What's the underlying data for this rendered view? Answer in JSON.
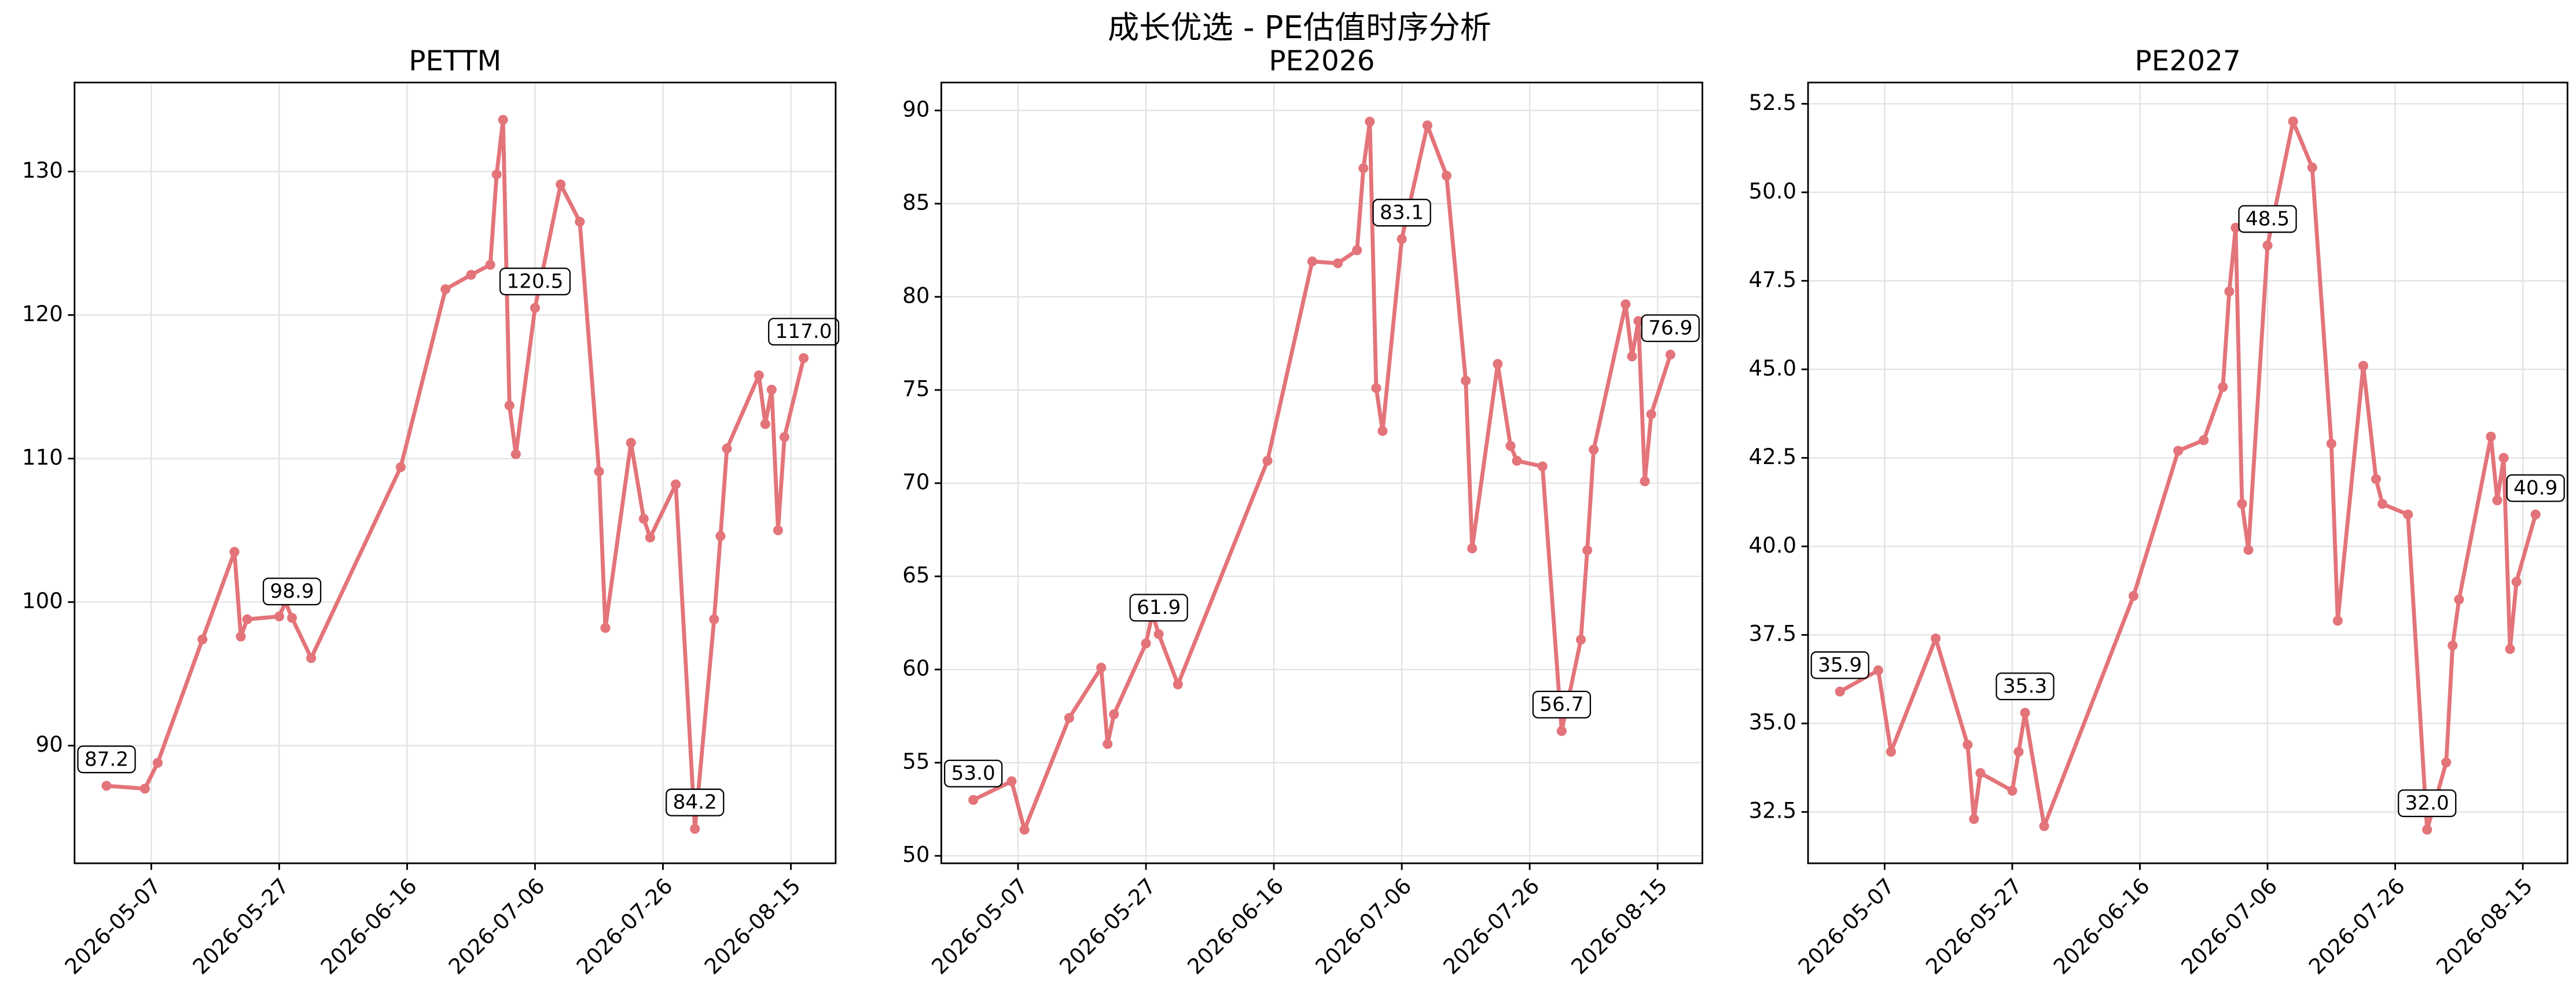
{
  "title": "成长优选 - PE估值时序分析",
  "chart_data": [
    {
      "type": "line",
      "title": "PETTM",
      "x": [
        "2026-04-30",
        "2026-05-06",
        "2026-05-08",
        "2026-05-15",
        "2026-05-20",
        "2026-05-21",
        "2026-05-22",
        "2026-05-27",
        "2026-05-28",
        "2026-05-29",
        "2026-06-01",
        "2026-06-15",
        "2026-06-22",
        "2026-06-26",
        "2026-06-29",
        "2026-06-30",
        "2026-07-01",
        "2026-07-02",
        "2026-07-03",
        "2026-07-06",
        "2026-07-10",
        "2026-07-13",
        "2026-07-16",
        "2026-07-17",
        "2026-07-21",
        "2026-07-23",
        "2026-07-24",
        "2026-07-28",
        "2026-07-31",
        "2026-08-03",
        "2026-08-04",
        "2026-08-05",
        "2026-08-10",
        "2026-08-11",
        "2026-08-12",
        "2026-08-13",
        "2026-08-14",
        "2026-08-17"
      ],
      "series": [
        {
          "color": "#e3747a",
          "values": [
            87.2,
            87.0,
            88.8,
            97.4,
            103.5,
            97.6,
            98.8,
            99.0,
            100.0,
            98.9,
            96.1,
            109.4,
            121.8,
            122.8,
            123.5,
            129.8,
            133.6,
            113.7,
            110.3,
            120.5,
            129.1,
            126.5,
            109.1,
            98.2,
            111.1,
            105.8,
            104.5,
            108.2,
            84.2,
            98.8,
            104.6,
            110.7,
            115.8,
            112.4,
            114.8,
            105.0,
            111.5,
            117.0
          ],
          "value_labels": [
            "87.2",
            null,
            null,
            null,
            null,
            null,
            null,
            null,
            null,
            "98.9",
            null,
            null,
            null,
            null,
            null,
            null,
            null,
            null,
            null,
            "120.5",
            null,
            null,
            null,
            null,
            null,
            null,
            null,
            null,
            "84.2",
            null,
            null,
            null,
            null,
            null,
            null,
            null,
            null,
            "117.0"
          ]
        }
      ],
      "xlim": [
        "2026-04-25",
        "2026-08-22"
      ],
      "xticks": [
        "2026-05-07",
        "2026-05-27",
        "2026-06-16",
        "2026-07-06",
        "2026-07-26",
        "2026-08-15"
      ],
      "ylim": [
        81.8,
        136.2
      ],
      "yticks": [
        90,
        100,
        110,
        120,
        130
      ],
      "grid": true
    },
    {
      "type": "line",
      "title": "PE2026",
      "x": [
        "2026-04-30",
        "2026-05-06",
        "2026-05-08",
        "2026-05-15",
        "2026-05-20",
        "2026-05-21",
        "2026-05-22",
        "2026-05-27",
        "2026-05-28",
        "2026-05-29",
        "2026-06-01",
        "2026-06-15",
        "2026-06-22",
        "2026-06-26",
        "2026-06-29",
        "2026-06-30",
        "2026-07-01",
        "2026-07-02",
        "2026-07-03",
        "2026-07-06",
        "2026-07-10",
        "2026-07-13",
        "2026-07-16",
        "2026-07-17",
        "2026-07-21",
        "2026-07-23",
        "2026-07-24",
        "2026-07-28",
        "2026-07-31",
        "2026-08-03",
        "2026-08-04",
        "2026-08-05",
        "2026-08-10",
        "2026-08-11",
        "2026-08-12",
        "2026-08-13",
        "2026-08-14",
        "2026-08-17"
      ],
      "series": [
        {
          "color": "#e3747a",
          "values": [
            53.0,
            54.0,
            51.4,
            57.4,
            60.1,
            56.0,
            57.6,
            61.4,
            63.0,
            61.9,
            59.2,
            71.2,
            81.9,
            81.8,
            82.5,
            86.9,
            89.4,
            75.1,
            72.8,
            83.1,
            89.2,
            86.5,
            75.5,
            66.5,
            76.4,
            72.0,
            71.2,
            70.9,
            56.7,
            61.6,
            66.4,
            71.8,
            79.6,
            76.8,
            78.7,
            70.1,
            73.7,
            76.9
          ],
          "value_labels": [
            "53.0",
            null,
            null,
            null,
            null,
            null,
            null,
            null,
            null,
            "61.9",
            null,
            null,
            null,
            null,
            null,
            null,
            null,
            null,
            null,
            "83.1",
            null,
            null,
            null,
            null,
            null,
            null,
            null,
            null,
            "56.7",
            null,
            null,
            null,
            null,
            null,
            null,
            null,
            null,
            "76.9"
          ]
        }
      ],
      "xlim": [
        "2026-04-25",
        "2026-08-22"
      ],
      "xticks": [
        "2026-05-07",
        "2026-05-27",
        "2026-06-16",
        "2026-07-06",
        "2026-07-26",
        "2026-08-15"
      ],
      "ylim": [
        49.6,
        91.5
      ],
      "yticks": [
        50,
        55,
        60,
        65,
        70,
        75,
        80,
        85,
        90
      ],
      "grid": true
    },
    {
      "type": "line",
      "title": "PE2027",
      "x": [
        "2026-04-30",
        "2026-05-06",
        "2026-05-08",
        "2026-05-15",
        "2026-05-20",
        "2026-05-21",
        "2026-05-22",
        "2026-05-27",
        "2026-05-28",
        "2026-05-29",
        "2026-06-01",
        "2026-06-15",
        "2026-06-22",
        "2026-06-26",
        "2026-06-29",
        "2026-06-30",
        "2026-07-01",
        "2026-07-02",
        "2026-07-03",
        "2026-07-06",
        "2026-07-10",
        "2026-07-13",
        "2026-07-16",
        "2026-07-17",
        "2026-07-21",
        "2026-07-23",
        "2026-07-24",
        "2026-07-28",
        "2026-07-31",
        "2026-08-03",
        "2026-08-04",
        "2026-08-05",
        "2026-08-10",
        "2026-08-11",
        "2026-08-12",
        "2026-08-13",
        "2026-08-14",
        "2026-08-17"
      ],
      "series": [
        {
          "color": "#e3747a",
          "values": [
            35.9,
            36.5,
            34.2,
            37.4,
            34.4,
            32.3,
            33.6,
            33.1,
            34.2,
            35.3,
            32.1,
            38.6,
            42.7,
            43.0,
            44.5,
            47.2,
            49.0,
            41.2,
            39.9,
            48.5,
            52.0,
            50.7,
            42.9,
            37.9,
            45.1,
            41.9,
            41.2,
            40.9,
            32.0,
            33.9,
            37.2,
            38.5,
            43.1,
            41.3,
            42.5,
            37.1,
            39.0,
            40.9
          ],
          "value_labels": [
            "35.9",
            null,
            null,
            null,
            null,
            null,
            null,
            null,
            null,
            "35.3",
            null,
            null,
            null,
            null,
            null,
            null,
            null,
            null,
            null,
            "48.5",
            null,
            null,
            null,
            null,
            null,
            null,
            null,
            null,
            "32.0",
            null,
            null,
            null,
            null,
            null,
            null,
            null,
            null,
            "40.9"
          ]
        }
      ],
      "xlim": [
        "2026-04-25",
        "2026-08-22"
      ],
      "xticks": [
        "2026-05-07",
        "2026-05-27",
        "2026-06-16",
        "2026-07-06",
        "2026-07-26",
        "2026-08-15"
      ],
      "ylim": [
        31.05,
        53.1
      ],
      "yticks": [
        {
          "value": 32.5,
          "label": "32.5"
        },
        {
          "value": 35,
          "label": "35.0"
        },
        {
          "value": 37.5,
          "label": "37.5"
        },
        {
          "value": 40,
          "label": "40.0"
        },
        {
          "value": 42.5,
          "label": "42.5"
        },
        {
          "value": 45,
          "label": "45.0"
        },
        {
          "value": 47.5,
          "label": "47.5"
        },
        {
          "value": 50,
          "label": "50.0"
        },
        {
          "value": 52.5,
          "label": "52.5"
        }
      ],
      "grid": true
    }
  ]
}
